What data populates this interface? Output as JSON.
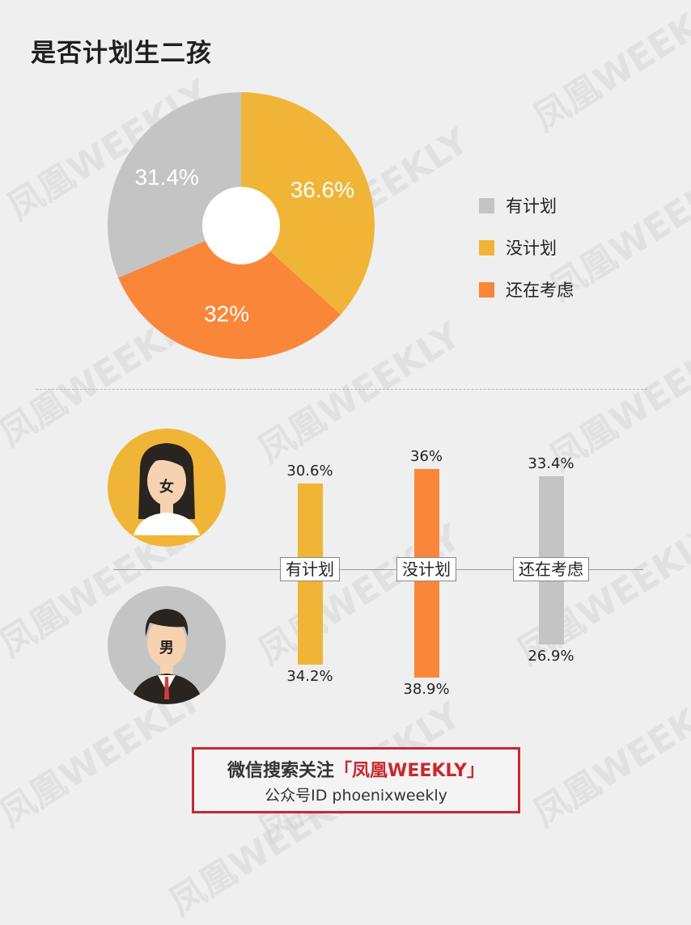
{
  "watermark": "凤凰WEEKLY",
  "chart_data": [
    {
      "type": "pie",
      "title": "是否计划生二孩",
      "donut": true,
      "categories": [
        "没计划",
        "还在考虑",
        "有计划"
      ],
      "values": [
        36.6,
        32,
        31.4
      ],
      "labels": [
        "36.6%",
        "32%",
        "31.4%"
      ],
      "colors": [
        "#f0b537",
        "#fa8639",
        "#c4c4c4"
      ],
      "legend": [
        {
          "label": "有计划",
          "color": "#c4c4c4"
        },
        {
          "label": "没计划",
          "color": "#f0b537"
        },
        {
          "label": "还在考虑",
          "color": "#fa8639"
        }
      ],
      "legend_position": "right"
    },
    {
      "type": "bar",
      "categories": [
        "有计划",
        "没计划",
        "还在考虑"
      ],
      "colors": [
        "#f0b537",
        "#fa8639",
        "#c4c4c4"
      ],
      "series": [
        {
          "name": "女",
          "values": [
            30.6,
            36,
            33.4
          ],
          "labels": [
            "30.6%",
            "36%",
            "33.4%"
          ],
          "direction": "up"
        },
        {
          "name": "男",
          "values": [
            34.2,
            38.9,
            26.9
          ],
          "labels": [
            "34.2%",
            "38.9%",
            "26.9%"
          ],
          "direction": "down"
        }
      ]
    }
  ],
  "footer": {
    "line1_prefix": "微信搜索关注",
    "line1_brand": "「凤凰WEEKLY」",
    "line2": "公众号ID  phoenixweekly"
  }
}
